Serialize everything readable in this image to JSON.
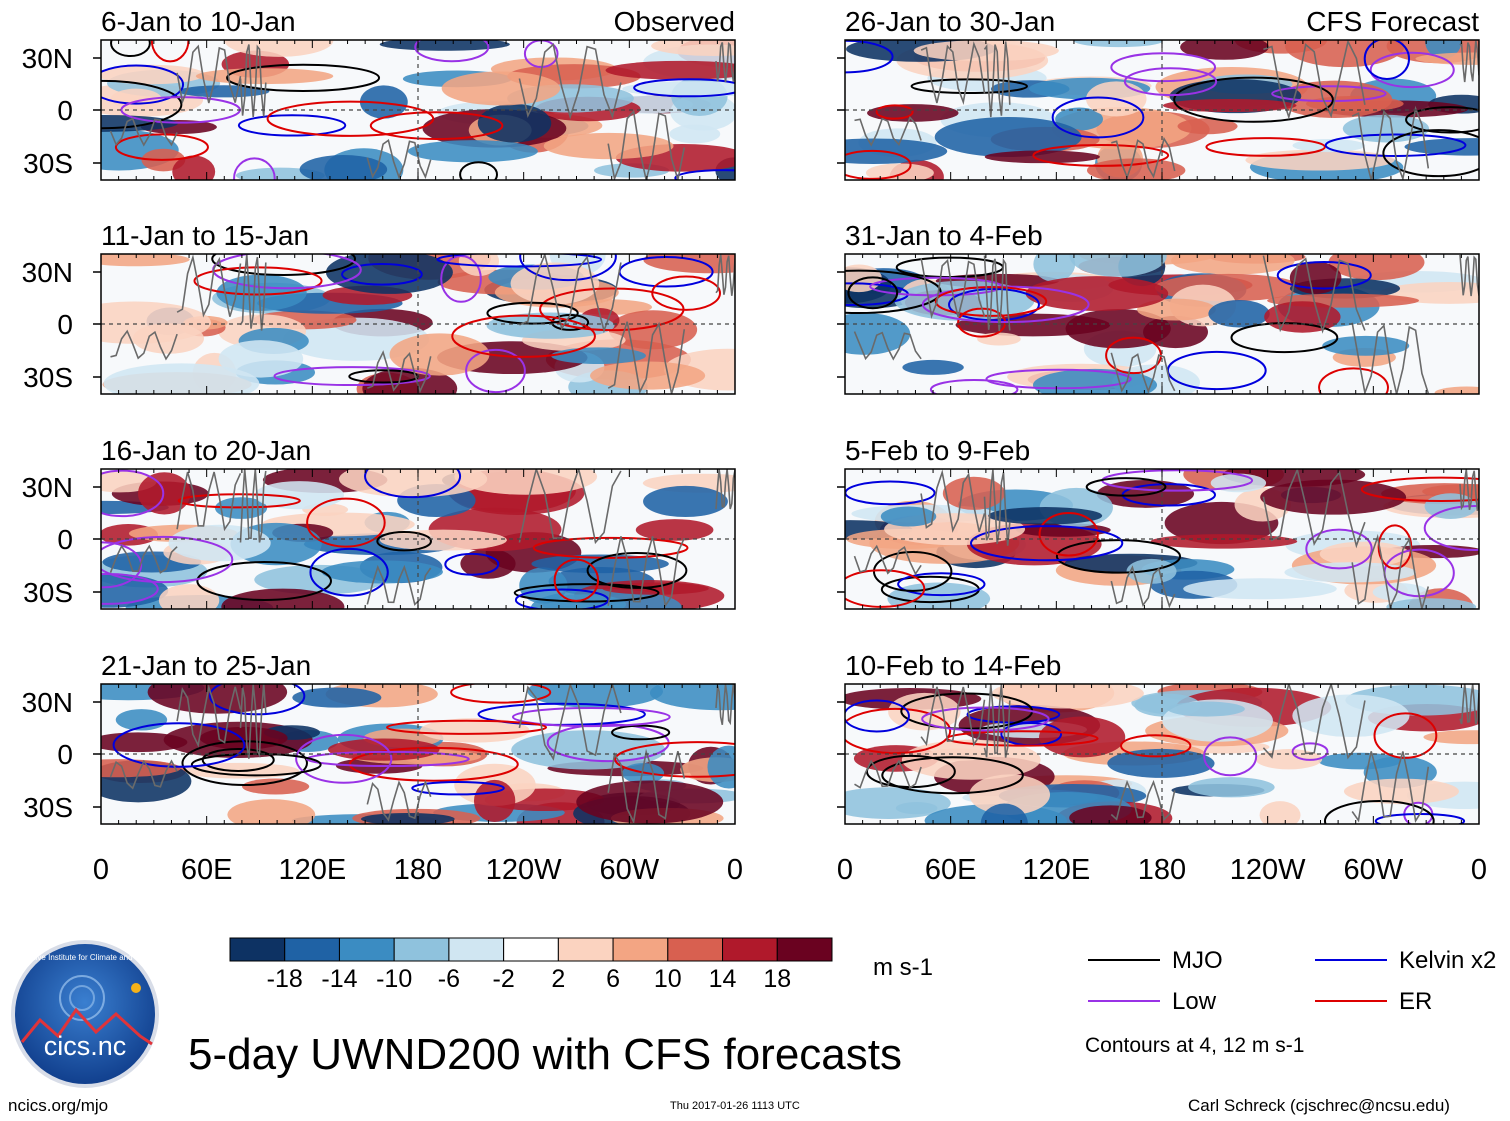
{
  "chart_data": {
    "type": "heatmap",
    "variable": "UWND200",
    "x_ticks": [
      "0",
      "60E",
      "120E",
      "180",
      "120W",
      "60W",
      "0"
    ],
    "y_ticks": [
      "30N",
      "0",
      "30S"
    ],
    "panels": [
      {
        "column": "left",
        "period": "6-Jan to 10-Jan",
        "source": "Observed"
      },
      {
        "column": "left",
        "period": "11-Jan to 15-Jan",
        "source": ""
      },
      {
        "column": "left",
        "period": "16-Jan to 20-Jan",
        "source": ""
      },
      {
        "column": "left",
        "period": "21-Jan to 25-Jan",
        "source": ""
      },
      {
        "column": "right",
        "period": "26-Jan to 30-Jan",
        "source": "CFS Forecast"
      },
      {
        "column": "right",
        "period": "31-Jan to 4-Feb",
        "source": ""
      },
      {
        "column": "right",
        "period": "5-Feb to 9-Feb",
        "source": ""
      },
      {
        "column": "right",
        "period": "10-Feb to 14-Feb",
        "source": ""
      }
    ],
    "colorbar": {
      "labels": [
        "-18",
        "-14",
        "-10",
        "-6",
        "-2",
        "2",
        "6",
        "10",
        "14",
        "18"
      ],
      "colors": [
        "#0d3263",
        "#1f62a5",
        "#3b8cc2",
        "#8fc2dd",
        "#d0e6f2",
        "#ffffff",
        "#fbd3c0",
        "#f3a583",
        "#d86050",
        "#b0192b",
        "#6a0220"
      ],
      "units": "m s-1"
    },
    "legend": [
      {
        "label": "MJO",
        "color": "#000000"
      },
      {
        "label": "Kelvin x2",
        "color": "#0000dd"
      },
      {
        "label": "Low",
        "color": "#9932e6"
      },
      {
        "label": "ER",
        "color": "#dd0000"
      }
    ],
    "contour_note": "Contours at 4, 12 m s-1"
  },
  "page": {
    "main_title": "5-day UWND200 with CFS forecasts",
    "logo_text": "cics.nc",
    "logo_ring_text": "Cooperative Institute for Climate and Satellites",
    "footer_left": "ncics.org/mjo",
    "footer_center": "Thu 2017-01-26 1113 UTC",
    "footer_right": "Carl Schreck (cjschrec@ncsu.edu)"
  }
}
